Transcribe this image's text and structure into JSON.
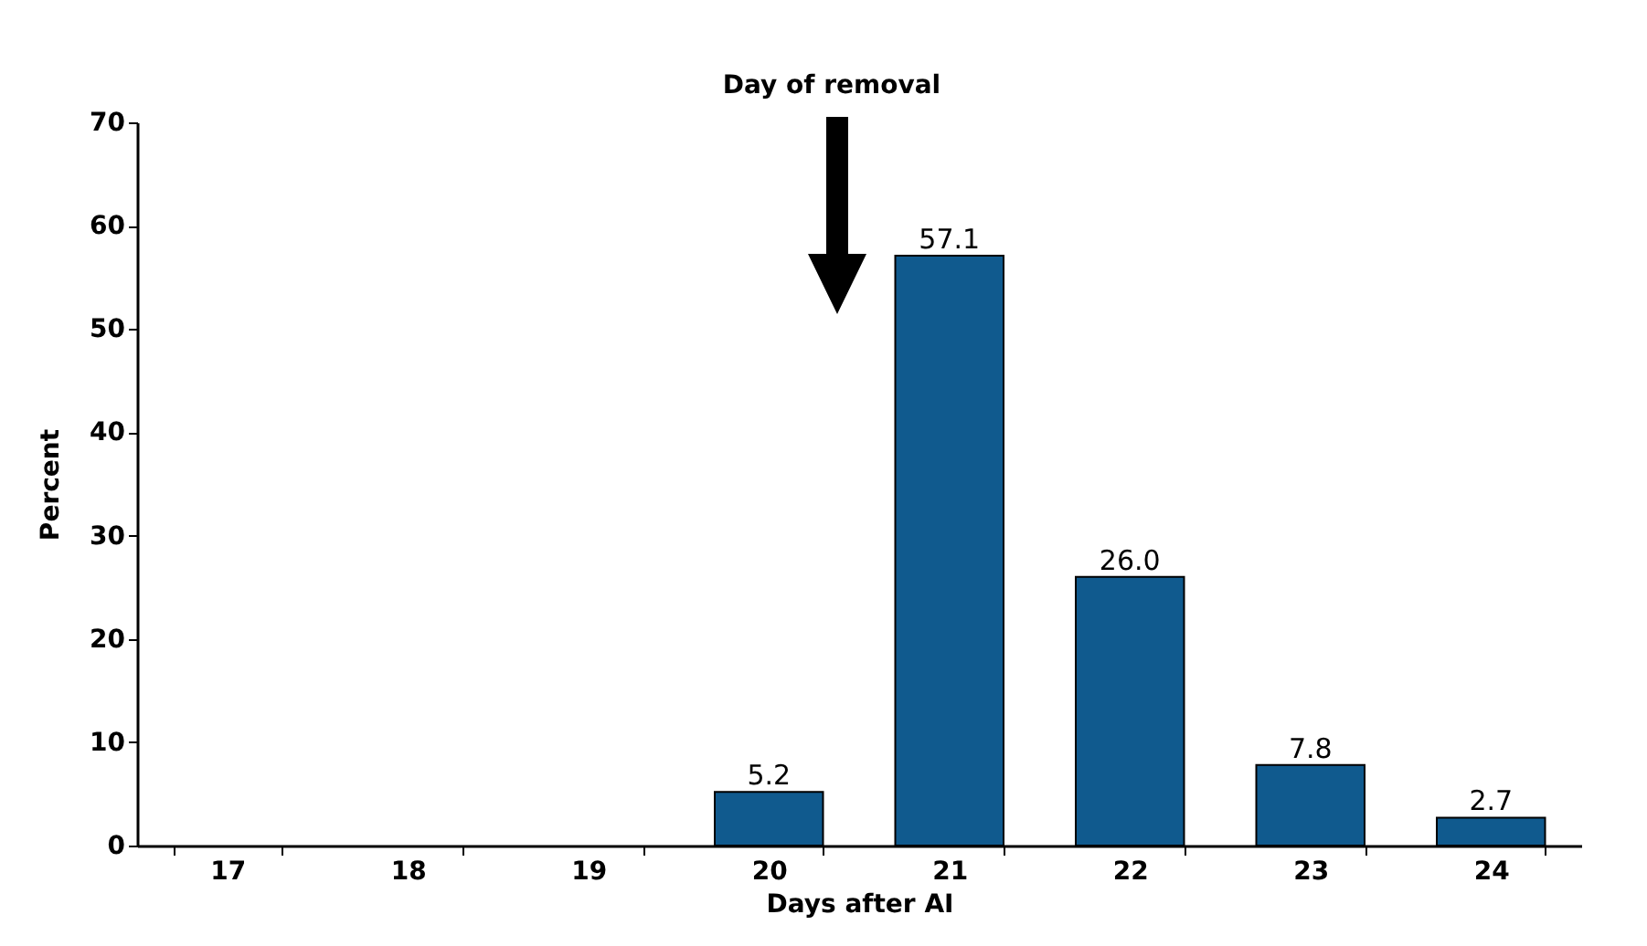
{
  "chart_data": {
    "type": "bar",
    "xlabel": "Days after AI",
    "ylabel": "Percent",
    "categories": [
      "17",
      "18",
      "19",
      "20",
      "21",
      "22",
      "23",
      "24"
    ],
    "values": [
      0,
      0,
      0,
      5.2,
      57.1,
      26.0,
      7.8,
      2.7
    ],
    "value_labels": [
      null,
      null,
      null,
      "5.2",
      "57.1",
      "26.0",
      "7.8",
      "2.7"
    ],
    "color": "#105a8e",
    "ylim": [
      0,
      70
    ],
    "yticks": [
      0,
      10,
      20,
      30,
      40,
      50,
      60,
      70
    ],
    "annotations": [
      "Day of removal"
    ]
  }
}
